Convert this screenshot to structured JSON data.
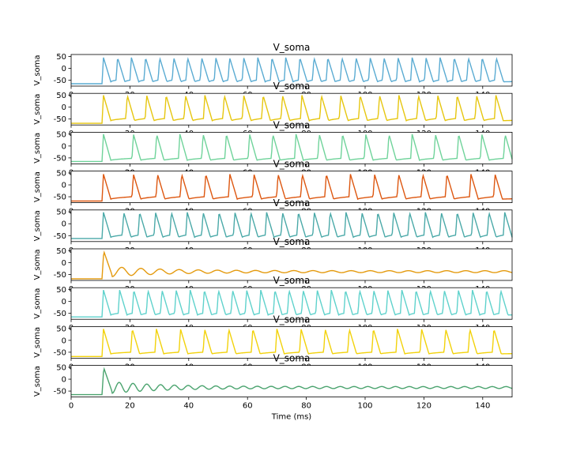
{
  "chart_data": {
    "type": "line",
    "xlabel": "Time (ms)",
    "xlim": [
      0,
      150
    ],
    "x_ticks": [
      0,
      20,
      40,
      60,
      80,
      100,
      120,
      140
    ],
    "ylim": [
      -75,
      58
    ],
    "y_ticks": [
      50,
      0,
      -50
    ],
    "panels": [
      {
        "title": "V_soma",
        "ylabel": "V_soma",
        "color": "#5aabd2",
        "rest": -65,
        "peak": 45,
        "spike_times": [
          10.5,
          15.3,
          20.0,
          24.8,
          29.6,
          34.4,
          39.1,
          43.9,
          48.7,
          53.4,
          58.2,
          63.0,
          67.8,
          72.5,
          77.3,
          82.1,
          86.8,
          91.6,
          96.4,
          101.2,
          105.9,
          110.7,
          115.5,
          120.2,
          125.0,
          129.8,
          134.6,
          139.3,
          144.1
        ],
        "trough": -57,
        "plateau": -50,
        "damped_mean": null
      },
      {
        "title": "V_soma",
        "ylabel": "V_soma",
        "color": "#e6c60f",
        "rest": -68,
        "peak": 50,
        "spike_times": [
          10.5,
          18.6,
          25.2,
          31.8,
          38.4,
          45.0,
          51.6,
          58.2,
          64.8,
          71.4,
          78.0,
          84.6,
          91.2,
          97.8,
          104.4,
          111.0,
          117.6,
          124.2,
          130.8,
          137.4,
          144.0
        ],
        "trough": -57,
        "plateau": -48,
        "damped_mean": null
      },
      {
        "title": "V_soma",
        "ylabel": "V_soma",
        "color": "#6fd39a",
        "rest": -65,
        "peak": 50,
        "spike_times": [
          10.5,
          20.7,
          28.6,
          36.5,
          44.4,
          52.3,
          60.2,
          68.1,
          76.0,
          83.9,
          91.8,
          99.7,
          107.6,
          115.5,
          123.4,
          131.3,
          139.2,
          147.1
        ],
        "trough": -60,
        "plateau": -52,
        "damped_mean": null
      },
      {
        "title": "V_soma",
        "ylabel": "V_soma",
        "color": "#dd5710",
        "rest": -68,
        "peak": 45,
        "spike_times": [
          10.5,
          20.7,
          28.9,
          37.1,
          45.3,
          53.5,
          61.7,
          69.9,
          78.1,
          86.3,
          94.5,
          102.7,
          110.9,
          119.1,
          127.3,
          135.5,
          143.7
        ],
        "trough": -60,
        "plateau": -50,
        "damped_mean": null
      },
      {
        "title": "V_soma",
        "ylabel": "V_soma",
        "color": "#4aa9a8",
        "rest": -62,
        "peak": 48,
        "spike_times": [
          10.5,
          17.4,
          22.8,
          28.2,
          33.6,
          39.0,
          44.4,
          49.8,
          55.2,
          60.6,
          66.0,
          71.4,
          76.8,
          82.2,
          87.6,
          93.0,
          98.4,
          103.8,
          109.2,
          114.6,
          120.0,
          125.4,
          130.8,
          136.2,
          141.6,
          147.0
        ],
        "trough": -57,
        "plateau": -48,
        "damped_mean": null
      },
      {
        "title": "V_soma",
        "ylabel": "V_soma",
        "color": "#e49a0e",
        "rest": -68,
        "peak": 48,
        "spike_times": [
          10.5
        ],
        "trough": -55,
        "plateau": null,
        "damped_mean": -38
      },
      {
        "title": "V_soma",
        "ylabel": "V_soma",
        "color": "#5fd2cc",
        "rest": -65,
        "peak": 48,
        "spike_times": [
          10.5,
          16.0,
          20.8,
          25.6,
          30.4,
          35.2,
          40.0,
          44.8,
          49.6,
          54.4,
          59.2,
          64.0,
          68.8,
          73.6,
          78.4,
          83.2,
          88.0,
          92.8,
          97.6,
          102.4,
          107.2,
          112.0,
          116.8,
          121.6,
          126.4,
          131.2,
          136.0,
          140.8,
          145.6
        ],
        "trough": -57,
        "plateau": -50,
        "damped_mean": null
      },
      {
        "title": "V_soma",
        "ylabel": "V_soma",
        "color": "#f2d20b",
        "rest": -68,
        "peak": 48,
        "spike_times": [
          10.5,
          20.3,
          28.5,
          36.7,
          44.9,
          53.1,
          61.3,
          69.5,
          77.7,
          85.9,
          94.1,
          102.3,
          110.5,
          118.7,
          126.9,
          135.1,
          143.3
        ],
        "trough": -57,
        "plateau": -50,
        "damped_mean": null
      },
      {
        "title": "V_soma",
        "ylabel": "V_soma",
        "color": "#4aa36e",
        "rest": -65,
        "peak": 48,
        "spike_times": [
          10.5
        ],
        "trough": -55,
        "plateau": null,
        "damped_mean": -35,
        "osc_period": 4.7
      }
    ]
  }
}
